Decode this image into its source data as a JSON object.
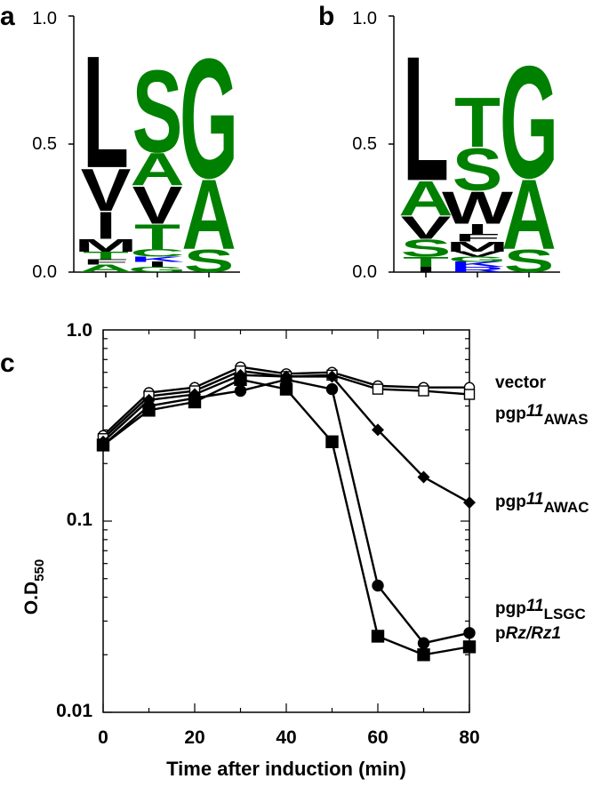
{
  "panels": {
    "a": {
      "label": "a",
      "y_ticks": [
        "1.0",
        "0.5",
        "0.0"
      ],
      "yrange": [
        0,
        1
      ],
      "columns": [
        [
          {
            "l": "L",
            "h": 0.45,
            "c": "#000000"
          },
          {
            "l": "V",
            "h": 0.17,
            "c": "#000000"
          },
          {
            "l": "I",
            "h": 0.11,
            "c": "#000000"
          },
          {
            "l": "M",
            "h": 0.05,
            "c": "#000000"
          },
          {
            "l": "T",
            "h": 0.03,
            "c": "#008000"
          },
          {
            "l": "F",
            "h": 0.02,
            "c": "#000000"
          },
          {
            "l": "A",
            "h": 0.03,
            "c": "#008000"
          }
        ],
        [
          {
            "l": "S",
            "h": 0.33,
            "c": "#008000"
          },
          {
            "l": "A",
            "h": 0.13,
            "c": "#008000"
          },
          {
            "l": "V",
            "h": 0.15,
            "c": "#000000"
          },
          {
            "l": "T",
            "h": 0.1,
            "c": "#008000"
          },
          {
            "l": "C",
            "h": 0.03,
            "c": "#008000"
          },
          {
            "l": "K",
            "h": 0.02,
            "c": "#0000ff"
          },
          {
            "l": "I",
            "h": 0.02,
            "c": "#000000"
          },
          {
            "l": "G",
            "h": 0.02,
            "c": "#008000"
          }
        ],
        [
          {
            "l": "G",
            "h": 0.48,
            "c": "#008000"
          },
          {
            "l": "A",
            "h": 0.28,
            "c": "#008000"
          },
          {
            "l": "S",
            "h": 0.09,
            "c": "#008000"
          }
        ]
      ]
    },
    "b": {
      "label": "b",
      "y_ticks": [
        "1.0",
        "0.5",
        "0.0"
      ],
      "yrange": [
        0,
        1
      ],
      "columns": [
        [
          {
            "l": "L",
            "h": 0.5,
            "c": "#000000"
          },
          {
            "l": "A",
            "h": 0.14,
            "c": "#008000"
          },
          {
            "l": "V",
            "h": 0.09,
            "c": "#000000"
          },
          {
            "l": "S",
            "h": 0.07,
            "c": "#008000"
          },
          {
            "l": "T",
            "h": 0.04,
            "c": "#008000"
          },
          {
            "l": "I",
            "h": 0.02,
            "c": "#000000"
          }
        ],
        [
          {
            "l": "T",
            "h": 0.2,
            "c": "#008000"
          },
          {
            "l": "S",
            "h": 0.17,
            "c": "#008000"
          },
          {
            "l": "W",
            "h": 0.13,
            "c": "#000000"
          },
          {
            "l": "I",
            "h": 0.04,
            "c": "#000000"
          },
          {
            "l": "F",
            "h": 0.03,
            "c": "#000000"
          },
          {
            "l": "M",
            "h": 0.04,
            "c": "#000000"
          },
          {
            "l": "V",
            "h": 0.02,
            "c": "#000000"
          },
          {
            "l": "G",
            "h": 0.02,
            "c": "#008000"
          },
          {
            "l": "K",
            "h": 0.02,
            "c": "#0000ff"
          },
          {
            "l": "R",
            "h": 0.02,
            "c": "#0000ff"
          }
        ],
        [
          {
            "l": "G",
            "h": 0.45,
            "c": "#008000"
          },
          {
            "l": "A",
            "h": 0.28,
            "c": "#008000"
          },
          {
            "l": "S",
            "h": 0.09,
            "c": "#008000"
          }
        ]
      ]
    },
    "c": {
      "label": "c",
      "ylabel_main": "O.D",
      "ylabel_sub": "550",
      "xlabel": "Time after induction (min)",
      "y_ticks": [
        "1.0",
        "0.1",
        "0.01"
      ]
    }
  },
  "chart_data": {
    "type": "line",
    "xlabel": "Time after induction (min)",
    "ylabel": "O.D550",
    "xlim": [
      0,
      80
    ],
    "ylim": [
      0.01,
      1.0
    ],
    "yscale": "log",
    "x_ticks": [
      0,
      20,
      40,
      60,
      80
    ],
    "x": [
      0,
      10,
      20,
      30,
      40,
      50,
      60,
      70,
      80
    ],
    "series": [
      {
        "name": "vector",
        "marker": "open-circle",
        "values": [
          0.28,
          0.47,
          0.5,
          0.64,
          0.59,
          0.6,
          0.51,
          0.5,
          0.5
        ]
      },
      {
        "name": "pgp11 AWAS",
        "marker": "open-square",
        "values": [
          0.27,
          0.45,
          0.48,
          0.61,
          0.57,
          0.58,
          0.49,
          0.48,
          0.46
        ]
      },
      {
        "name": "pgp11 AWAC",
        "marker": "diamond",
        "values": [
          0.26,
          0.43,
          0.46,
          0.58,
          0.57,
          0.57,
          0.3,
          0.17,
          0.125
        ]
      },
      {
        "name": "pgp11 LSGC",
        "marker": "circle",
        "values": [
          0.25,
          0.4,
          0.44,
          0.48,
          0.55,
          0.49,
          0.046,
          0.023,
          0.026
        ]
      },
      {
        "name": "pRz/Rz1",
        "marker": "square",
        "values": [
          0.25,
          0.38,
          0.42,
          0.55,
          0.49,
          0.26,
          0.025,
          0.02,
          0.022
        ]
      }
    ]
  },
  "legend": [
    {
      "key": "vector",
      "pre": "vector",
      "ital": "",
      "sub": ""
    },
    {
      "key": "AWAS",
      "pre": "pgp",
      "ital": "11",
      "sub": "AWAS"
    },
    {
      "key": "AWAC",
      "pre": "pgp",
      "ital": "11",
      "sub": "AWAC"
    },
    {
      "key": "LSGC",
      "pre": "pgp",
      "ital": "11",
      "sub": "LSGC"
    },
    {
      "key": "Rz",
      "pre": "p",
      "ital": "Rz/Rz1",
      "sub": ""
    }
  ]
}
